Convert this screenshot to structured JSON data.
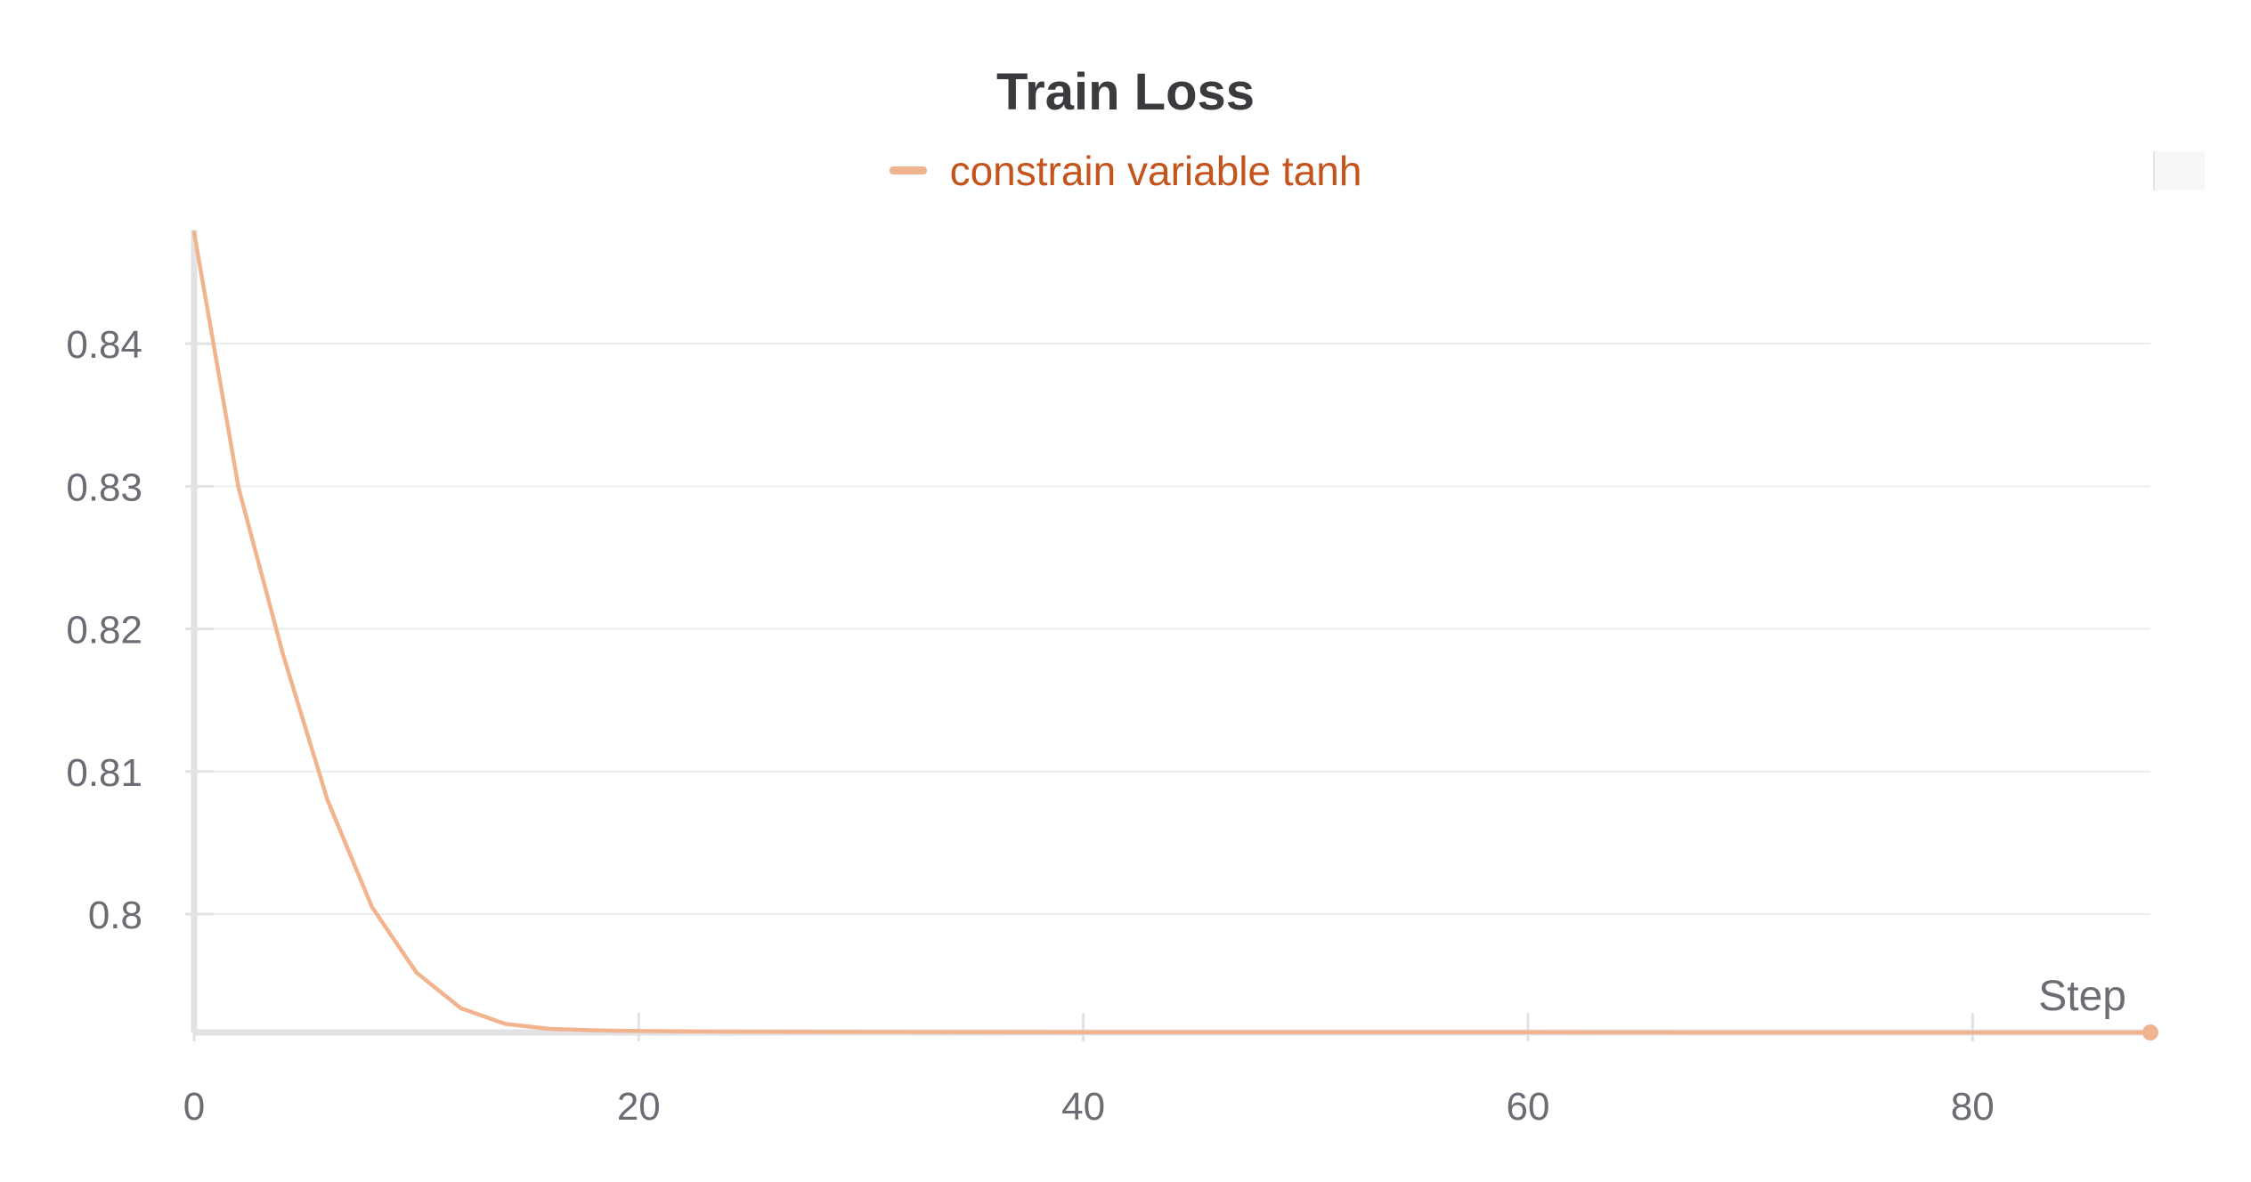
{
  "colors": {
    "series": "#f2b48f",
    "legend_text": "#c4541c",
    "title": "#3a3b3f",
    "axis": "#e2e2e4",
    "grid": "#ececee",
    "tick_text": "#6b6c74"
  },
  "chart_data": {
    "type": "line",
    "title": "Train Loss",
    "xlabel": "Step",
    "ylabel": "",
    "xlim": [
      0,
      88
    ],
    "ylim": [
      0.7917,
      0.848
    ],
    "x_ticks": [
      0,
      20,
      40,
      60,
      80
    ],
    "y_ticks": [
      0.8,
      0.81,
      0.82,
      0.83,
      0.84
    ],
    "x_tick_labels": [
      "0",
      "20",
      "40",
      "60",
      "80"
    ],
    "y_tick_labels": [
      "0.8",
      "0.81",
      "0.82",
      "0.83",
      "0.84"
    ],
    "grid": "horizontal",
    "legend_position": "top-center",
    "series": [
      {
        "name": "constrain variable tanh",
        "color": "#f2b48f",
        "x": [
          0,
          2,
          4,
          6,
          8,
          10,
          12,
          14,
          16,
          18,
          20,
          22,
          24,
          28,
          32,
          40,
          50,
          60,
          70,
          80,
          88
        ],
        "y": [
          0.8478,
          0.8299,
          0.8182,
          0.808,
          0.8005,
          0.7959,
          0.7934,
          0.7923,
          0.79195,
          0.79185,
          0.7918,
          0.79178,
          0.79176,
          0.79174,
          0.79173,
          0.79172,
          0.79171,
          0.79171,
          0.7917,
          0.7917,
          0.7917
        ]
      }
    ]
  }
}
